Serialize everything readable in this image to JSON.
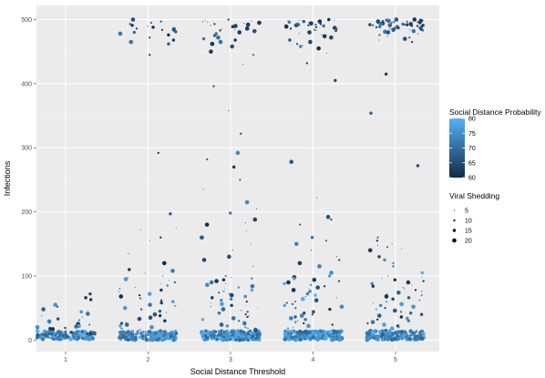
{
  "chart_data": {
    "type": "scatter",
    "title": "",
    "xlabel": "Social Distance Threshold",
    "ylabel": "Infections",
    "categories": [
      "1",
      "2",
      "3",
      "4",
      "5"
    ],
    "ylim": [
      -18,
      522
    ],
    "y_ticks": [
      0,
      100,
      200,
      300,
      400,
      500
    ],
    "grid": true,
    "panel_background": "#ebebeb",
    "jitter_width": 0.35,
    "color_legend": {
      "title": "Social Distance Probability",
      "range": [
        60,
        80
      ],
      "ticks": [
        80,
        75,
        70,
        65,
        60
      ],
      "low_color": "#132b43",
      "high_color": "#56b1f7"
    },
    "size_legend": {
      "title": "Viral Shedding",
      "values": [
        5,
        10,
        15,
        20
      ]
    },
    "groups": [
      {
        "x": "1",
        "high": [],
        "mid": [],
        "low_spread": [
          72,
          66,
          63,
          55,
          52,
          48,
          46,
          44,
          41,
          38,
          36,
          33,
          31,
          29,
          27,
          25,
          24,
          22,
          21,
          20,
          19,
          18,
          17,
          16,
          15,
          14,
          13,
          12,
          12,
          11,
          10,
          10,
          9
        ]
      },
      {
        "x": "2",
        "high": [
          500,
          497,
          495,
          493,
          491,
          490,
          488,
          487,
          486,
          485,
          484,
          483,
          481,
          480,
          478,
          476,
          472,
          468,
          465,
          462,
          445
        ],
        "mid": [
          292,
          197,
          175,
          172,
          160,
          155,
          135
        ],
        "low_spread": [
          120,
          110,
          108,
          104,
          100,
          98,
          95,
          93,
          90,
          88,
          85,
          82,
          80,
          78,
          75,
          72,
          70,
          68,
          65,
          62,
          60,
          58,
          55,
          53,
          50,
          48,
          45,
          43,
          40,
          38,
          35,
          33,
          30,
          28,
          26,
          24,
          22,
          20,
          18,
          16
        ]
      },
      {
        "x": "3",
        "high": [
          500,
          499,
          498,
          497,
          496,
          495,
          494,
          493,
          492,
          491,
          490,
          489,
          488,
          487,
          486,
          485,
          484,
          483,
          482,
          480,
          478,
          475,
          472,
          470,
          468,
          465,
          462,
          458,
          450,
          445,
          430
        ],
        "mid": [
          396,
          358,
          322,
          292,
          282,
          270,
          250,
          235,
          215,
          205,
          198,
          188,
          183,
          180,
          170,
          160,
          150,
          140,
          130,
          125,
          115
        ],
        "low_spread": [
          100,
          98,
          96,
          94,
          92,
          90,
          88,
          86,
          84,
          82,
          80,
          78,
          76,
          74,
          72,
          70,
          68,
          66,
          64,
          62,
          60,
          58,
          56,
          54,
          52,
          50,
          48,
          46,
          44,
          42,
          40,
          38,
          36,
          34,
          32,
          30,
          28,
          26,
          24,
          22,
          20,
          18,
          16,
          15
        ]
      },
      {
        "x": "4",
        "high": [
          500,
          499,
          499,
          498,
          498,
          497,
          497,
          496,
          496,
          495,
          495,
          494,
          494,
          493,
          493,
          492,
          492,
          491,
          491,
          490,
          490,
          489,
          488,
          487,
          486,
          485,
          484,
          483,
          482,
          480,
          478,
          476,
          474,
          472,
          470,
          468,
          465,
          462,
          460,
          458,
          455,
          448,
          432,
          405
        ],
        "mid": [
          278,
          222,
          192,
          188,
          180,
          160,
          155,
          150,
          140,
          130,
          125,
          120,
          115
        ],
        "low_spread": [
          105,
          100,
          98,
          96,
          94,
          92,
          90,
          88,
          86,
          84,
          82,
          80,
          78,
          76,
          74,
          72,
          70,
          68,
          66,
          64,
          62,
          60,
          58,
          56,
          54,
          52,
          50,
          48,
          46,
          44,
          42,
          40,
          38,
          36,
          34,
          32,
          30,
          28,
          26,
          24,
          22,
          20,
          18
        ]
      },
      {
        "x": "5",
        "high": [
          500,
          500,
          499,
          499,
          499,
          498,
          498,
          498,
          497,
          497,
          497,
          496,
          496,
          496,
          495,
          495,
          495,
          494,
          494,
          494,
          493,
          493,
          493,
          492,
          492,
          492,
          491,
          491,
          491,
          490,
          490,
          490,
          489,
          489,
          488,
          488,
          487,
          487,
          486,
          486,
          485,
          485,
          484,
          484,
          483,
          482,
          481,
          480,
          478,
          476,
          474,
          472,
          470,
          468,
          465,
          415
        ],
        "mid": [
          354,
          272,
          160,
          155,
          150,
          148,
          145,
          142,
          140,
          130,
          125,
          120,
          115
        ],
        "low_spread": [
          105,
          100,
          98,
          96,
          94,
          92,
          90,
          88,
          86,
          84,
          82,
          80,
          78,
          76,
          74,
          72,
          70,
          68,
          66,
          64,
          62,
          60,
          58,
          56,
          54,
          52,
          50,
          48,
          46,
          44,
          42,
          40,
          38,
          36,
          34,
          32,
          30,
          28,
          26,
          24,
          22,
          20,
          18,
          16
        ]
      }
    ],
    "dense_floor": {
      "range": [
        0,
        14
      ],
      "points_per_group": [
        160,
        220,
        260,
        260,
        260
      ]
    }
  }
}
